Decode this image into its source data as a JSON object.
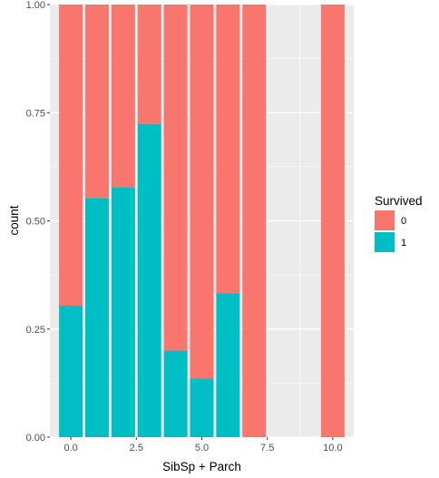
{
  "chart_data": {
    "type": "bar",
    "stacked": true,
    "position": "fill",
    "title": "",
    "xlabel": "SibSp + Parch",
    "ylabel": "count",
    "xlim": [
      -0.8,
      10.8
    ],
    "ylim": [
      0,
      1
    ],
    "x_ticks": [
      0,
      2.5,
      5,
      7.5,
      10
    ],
    "x_tick_labels": [
      "0.0",
      "2.5",
      "5.0",
      "7.5",
      "10.0"
    ],
    "y_ticks": [
      0,
      0.25,
      0.5,
      0.75,
      1
    ],
    "y_tick_labels": [
      "0.00",
      "0.25",
      "0.50",
      "0.75",
      "1.00"
    ],
    "grid": true,
    "legend": {
      "title": "Survived",
      "placement": "right"
    },
    "x": [
      0,
      1,
      2,
      3,
      4,
      5,
      6,
      7,
      10
    ],
    "series": [
      {
        "name": "0",
        "color": "#F8766D",
        "values": [
          0.696,
          0.447,
          0.422,
          0.276,
          0.8,
          0.864,
          0.667,
          1.0,
          1.0
        ]
      },
      {
        "name": "1",
        "color": "#00BFC4",
        "values": [
          0.304,
          0.553,
          0.578,
          0.724,
          0.2,
          0.136,
          0.333,
          0.0,
          0.0
        ]
      }
    ]
  }
}
